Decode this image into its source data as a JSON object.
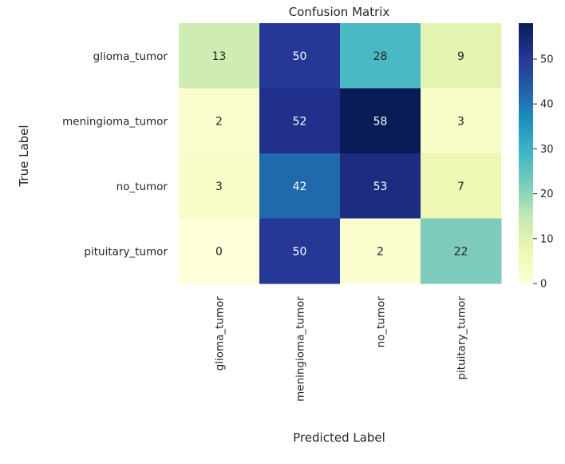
{
  "chart_data": {
    "type": "heatmap",
    "title": "Confusion Matrix",
    "xlabel": "Predicted Label",
    "ylabel": "True Label",
    "x_categories": [
      "glioma_tumor",
      "meningioma_tumor",
      "no_tumor",
      "pituitary_tumor"
    ],
    "y_categories": [
      "glioma_tumor",
      "meningioma_tumor",
      "no_tumor",
      "pituitary_tumor"
    ],
    "values": [
      [
        13,
        50,
        28,
        9
      ],
      [
        2,
        52,
        58,
        3
      ],
      [
        3,
        42,
        53,
        7
      ],
      [
        0,
        50,
        2,
        22
      ]
    ],
    "colormap": "YlGnBu",
    "vmin": 0,
    "vmax": 58,
    "colorbar_ticks": [
      0,
      10,
      20,
      30,
      40,
      50
    ],
    "annotations": true
  }
}
